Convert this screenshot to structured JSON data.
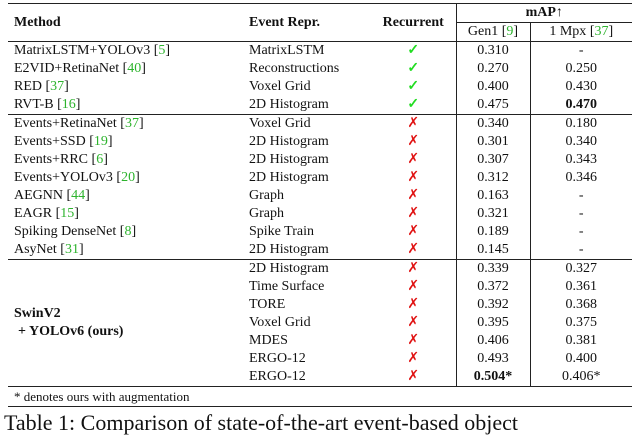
{
  "header": {
    "method": "Method",
    "event_repr": "Event Repr.",
    "recurrent": "Recurrent",
    "map": "mAP↑",
    "gen1": "Gen1",
    "gen1_ref": "9",
    "mpx": "1 Mpx",
    "mpx_ref": "37"
  },
  "group1": [
    {
      "method": "MatrixLSTM+YOLOv3",
      "ref": "5",
      "repr": "MatrixLSTM",
      "recurrent": "✓",
      "gen1": "0.310",
      "mpx": "-"
    },
    {
      "method": "E2VID+RetinaNet",
      "ref": "40",
      "repr": "Reconstructions",
      "recurrent": "✓",
      "gen1": "0.270",
      "mpx": "0.250"
    },
    {
      "method": "RED",
      "ref": "37",
      "repr": "Voxel Grid",
      "recurrent": "✓",
      "gen1": "0.400",
      "mpx": "0.430"
    },
    {
      "method": "RVT-B",
      "ref": "16",
      "repr": "2D Histogram",
      "recurrent": "✓",
      "gen1": "0.475",
      "mpx": "0.470",
      "mpx_bold": true
    }
  ],
  "group2": [
    {
      "method": "Events+RetinaNet",
      "ref": "37",
      "repr": "Voxel Grid",
      "recurrent": "✗",
      "gen1": "0.340",
      "mpx": "0.180"
    },
    {
      "method": "Events+SSD",
      "ref": "19",
      "repr": "2D Histogram",
      "recurrent": "✗",
      "gen1": "0.301",
      "mpx": "0.340"
    },
    {
      "method": "Events+RRC",
      "ref": "6",
      "repr": "2D Histogram",
      "recurrent": "✗",
      "gen1": "0.307",
      "mpx": "0.343"
    },
    {
      "method": "Events+YOLOv3",
      "ref": "20",
      "repr": "2D Histogram",
      "recurrent": "✗",
      "gen1": "0.312",
      "mpx": "0.346"
    },
    {
      "method": "AEGNN",
      "ref": "44",
      "repr": "Graph",
      "recurrent": "✗",
      "gen1": "0.163",
      "mpx": "-"
    },
    {
      "method": "EAGR",
      "ref": "15",
      "repr": "Graph",
      "recurrent": "✗",
      "gen1": "0.321",
      "mpx": "-"
    },
    {
      "method": "Spiking DenseNet",
      "ref": "8",
      "repr": "Spike Train",
      "recurrent": "✗",
      "gen1": "0.189",
      "mpx": "-"
    },
    {
      "method": "AsyNet",
      "ref": "31",
      "repr": "2D Histogram",
      "recurrent": "✗",
      "gen1": "0.145",
      "mpx": "-"
    }
  ],
  "ours": {
    "method_line1": "SwinV2",
    "method_line2": "+ YOLOv6 (ours)",
    "rows": [
      {
        "repr": "2D Histogram",
        "recurrent": "✗",
        "gen1": "0.339",
        "mpx": "0.327"
      },
      {
        "repr": "Time Surface",
        "recurrent": "✗",
        "gen1": "0.372",
        "mpx": "0.361"
      },
      {
        "repr": "TORE",
        "recurrent": "✗",
        "gen1": "0.392",
        "mpx": "0.368"
      },
      {
        "repr": "Voxel Grid",
        "recurrent": "✗",
        "gen1": "0.395",
        "mpx": "0.375"
      },
      {
        "repr": "MDES",
        "recurrent": "✗",
        "gen1": "0.406",
        "mpx": "0.381"
      },
      {
        "repr": "ERGO-12",
        "recurrent": "✗",
        "gen1": "0.493",
        "mpx": "0.400"
      },
      {
        "repr": "ERGO-12",
        "recurrent": "✗",
        "gen1": "0.504*",
        "mpx": "0.406*",
        "gen1_bold": true
      }
    ]
  },
  "footnote": "* denotes ours with augmentation",
  "caption": "Table 1: Comparison of state-of-the-art event-based object",
  "colors": {
    "check": "#22dd22",
    "cross": "#e01010",
    "ref": "#2db32d"
  }
}
